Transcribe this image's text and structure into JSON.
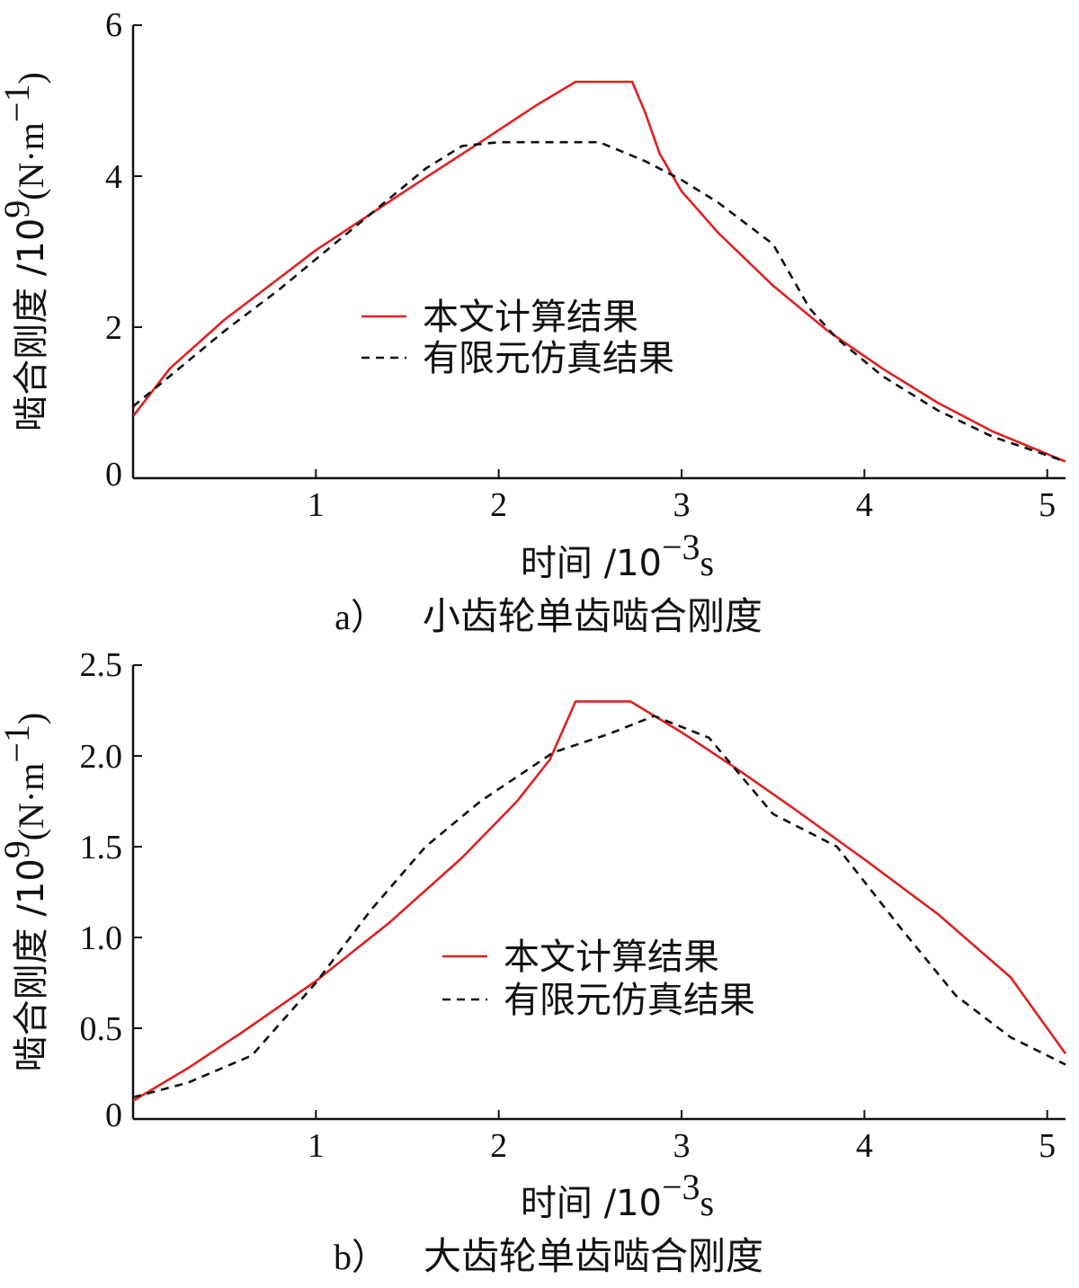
{
  "chart_data": [
    {
      "type": "line",
      "caption_tag": "a）",
      "caption_text": "小齿轮单齿啮合刚度",
      "xlabel": "时间 /10",
      "xlabel_exp": "−3",
      "xlabel_unit": "s",
      "ylabel": "啮合刚度 /10",
      "ylabel_exp": "9",
      "ylabel_unit": "(N·m",
      "ylabel_unit_exp": "−1",
      "ylabel_unit_close": ")",
      "xlim": [
        0,
        5.1
      ],
      "ylim": [
        0,
        6
      ],
      "xticks": [
        1,
        2,
        3,
        4,
        5
      ],
      "xtick_labels": [
        "1",
        "2",
        "3",
        "4",
        "5"
      ],
      "yticks": [
        0,
        2,
        4,
        6
      ],
      "ytick_labels": [
        "0",
        "2",
        "4",
        "6"
      ],
      "legend_position": "center",
      "series": [
        {
          "name": "本文计算结果",
          "color": "#e02020",
          "dash": "solid",
          "x": [
            0,
            0.2,
            0.5,
            0.8,
            1.0,
            1.3,
            1.6,
            1.9,
            2.2,
            2.42,
            2.73,
            2.8,
            2.88,
            3.0,
            3.2,
            3.5,
            3.8,
            4.1,
            4.4,
            4.7,
            5.1
          ],
          "y": [
            0.82,
            1.45,
            2.1,
            2.65,
            3.02,
            3.5,
            3.98,
            4.45,
            4.93,
            5.25,
            5.25,
            4.85,
            4.3,
            3.8,
            3.25,
            2.55,
            1.95,
            1.45,
            1.0,
            0.62,
            0.22
          ]
        },
        {
          "name": "有限元仿真结果",
          "color": "#111111",
          "dash": "dashed",
          "x": [
            0,
            0.2,
            0.5,
            0.8,
            1.0,
            1.3,
            1.6,
            1.8,
            2.0,
            2.3,
            2.55,
            2.8,
            3.0,
            3.2,
            3.5,
            3.7,
            3.85,
            4.1,
            4.4,
            4.7,
            5.1
          ],
          "y": [
            0.95,
            1.35,
            1.95,
            2.5,
            2.9,
            3.5,
            4.1,
            4.4,
            4.45,
            4.45,
            4.45,
            4.2,
            3.95,
            3.65,
            3.1,
            2.25,
            1.85,
            1.35,
            0.9,
            0.55,
            0.22
          ]
        }
      ]
    },
    {
      "type": "line",
      "caption_tag": "b）",
      "caption_text": "大齿轮单齿啮合刚度",
      "xlabel": "时间 /10",
      "xlabel_exp": "−3",
      "xlabel_unit": "s",
      "ylabel": "啮合刚度 /10",
      "ylabel_exp": "9",
      "ylabel_unit": "(N·m",
      "ylabel_unit_exp": "−1",
      "ylabel_unit_close": ")",
      "xlim": [
        0,
        5.1
      ],
      "ylim": [
        0,
        2.5
      ],
      "xticks": [
        1,
        2,
        3,
        4,
        5
      ],
      "xtick_labels": [
        "1",
        "2",
        "3",
        "4",
        "5"
      ],
      "yticks": [
        0,
        0.5,
        1.0,
        1.5,
        2.0,
        2.5
      ],
      "ytick_labels": [
        "0",
        "0.5",
        "1.0",
        "1.5",
        "2.0",
        "2.5"
      ],
      "legend_position": "center-right",
      "series": [
        {
          "name": "本文计算结果",
          "color": "#e02020",
          "dash": "solid",
          "x": [
            0,
            0.3,
            0.6,
            1.0,
            1.4,
            1.8,
            2.1,
            2.28,
            2.42,
            2.72,
            3.0,
            3.3,
            3.6,
            4.0,
            4.4,
            4.8,
            5.1
          ],
          "y": [
            0.1,
            0.28,
            0.48,
            0.76,
            1.08,
            1.44,
            1.75,
            1.98,
            2.3,
            2.3,
            2.13,
            1.93,
            1.72,
            1.43,
            1.13,
            0.78,
            0.36
          ]
        },
        {
          "name": "有限元仿真结果",
          "color": "#111111",
          "dash": "dashed",
          "x": [
            0,
            0.3,
            0.65,
            1.0,
            1.3,
            1.6,
            1.9,
            2.3,
            2.6,
            2.85,
            3.15,
            3.5,
            3.85,
            4.2,
            4.5,
            4.8,
            5.1
          ],
          "y": [
            0.12,
            0.2,
            0.35,
            0.75,
            1.15,
            1.5,
            1.75,
            2.02,
            2.12,
            2.22,
            2.1,
            1.68,
            1.5,
            1.05,
            0.68,
            0.45,
            0.3
          ]
        }
      ]
    }
  ]
}
